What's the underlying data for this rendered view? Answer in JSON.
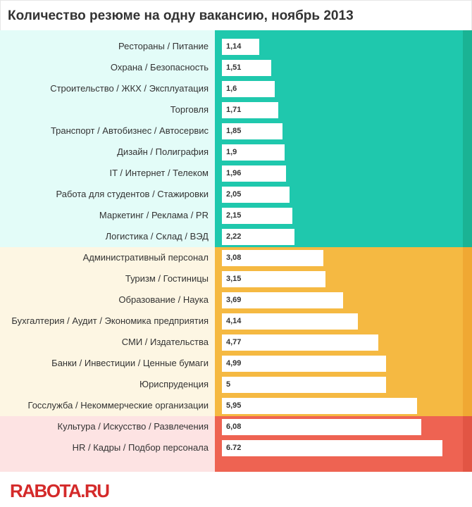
{
  "chart_data": {
    "type": "bar",
    "orientation": "horizontal",
    "title": "Количество резюме на одну вакансию, ноябрь 2013",
    "xlim": [
      0,
      7.34
    ],
    "grid": false,
    "groups": [
      {
        "color": "#1fc8ad",
        "dark": "#1ab394",
        "light": "#e3fcf8",
        "categories": [
          "Рестораны / Питание",
          "Охрана / Безопасность",
          "Строительство / ЖКХ / Эксплуатация",
          "Торговля",
          "Транспорт / Автобизнес / Автосервис",
          "Дизайн / Полиграфия",
          "IT / Интернет / Телеком",
          "Работа для студентов / Стажировки",
          "Маркетинг / Реклама / PR",
          "Логистика / Склад / ВЭД"
        ],
        "values": [
          1.14,
          1.51,
          1.6,
          1.71,
          1.85,
          1.9,
          1.96,
          2.05,
          2.15,
          2.22
        ],
        "labels": [
          "1,14",
          "1,51",
          "1,6",
          "1,71",
          "1,85",
          "1,9",
          "1,96",
          "2,05",
          "2,15",
          "2,22"
        ]
      },
      {
        "color": "#f5b942",
        "dark": "#f0a833",
        "light": "#fdf6e3",
        "categories": [
          "Административный персонал",
          "Туризм / Гостиницы",
          "Образование / Наука",
          "Бухгалтерия / Аудит / Экономика предприятия",
          "СМИ / Издательства",
          "Банки / Инвестиции / Ценные бумаги",
          "Юриспруденция",
          "Госслужба / Некоммерческие организации"
        ],
        "values": [
          3.08,
          3.15,
          3.69,
          4.14,
          4.77,
          4.99,
          5,
          5.95
        ],
        "labels": [
          "3,08",
          "3,15",
          "3,69",
          "4,14",
          "4,77",
          "4,99",
          "5",
          "5,95"
        ]
      },
      {
        "color": "#ee6352",
        "dark": "#e25544",
        "light": "#fde3e3",
        "categories": [
          "Культура / Искусство / Развлечения",
          "HR / Кадры / Подбор персонала"
        ],
        "values": [
          6.08,
          6.72
        ],
        "labels": [
          "6,08",
          "6.72"
        ]
      }
    ]
  },
  "footer": {
    "logo": "RABOTA.RU"
  }
}
